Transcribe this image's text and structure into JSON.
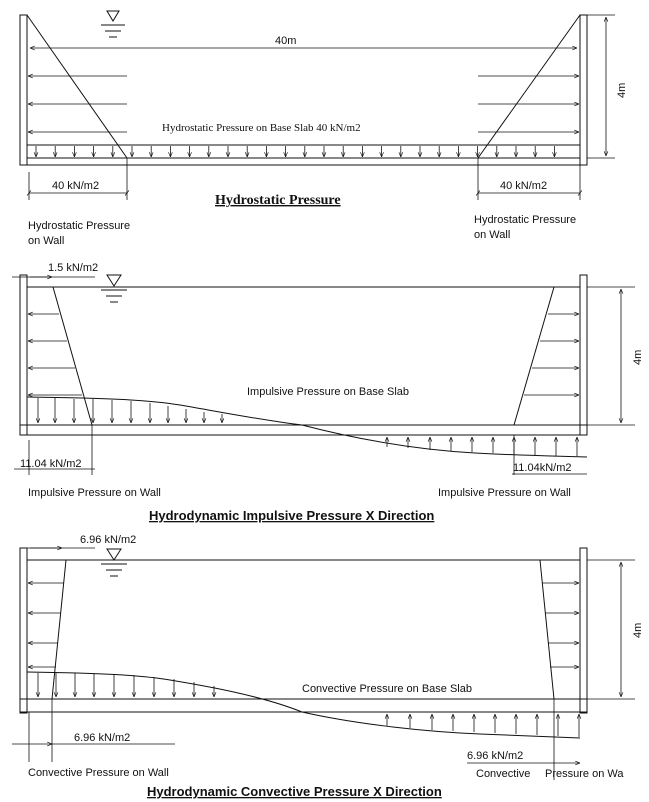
{
  "panel1": {
    "span_label": "40m",
    "height_label": "4m",
    "base_label": "Hydrostatic Pressure on Base Slab 40 kN/m2",
    "left_value": "40 kN/m2",
    "right_value": "40 kN/m2",
    "title": "Hydrostatic Pressure",
    "left_wall_label_1": "Hydrostatic Pressure",
    "left_wall_label_2": "on Wall",
    "right_wall_label_1": "Hydrostatic Pressure",
    "right_wall_label_2": "on Wall"
  },
  "panel2": {
    "top_value": "1.5 kN/m2",
    "height_label": "4m",
    "base_label": "Impulsive Pressure on Base Slab",
    "left_value": "11.04 kN/m2",
    "right_value": "11.04kN/m2",
    "left_wall_label": "Impulsive Pressure on Wall",
    "right_wall_label": "Impulsive  Pressure on Wall",
    "title": "Hydrodynamic Impulsive  Pressure X Direction"
  },
  "panel3": {
    "top_value": "6.96 kN/m2",
    "height_label": "4m",
    "base_label": "Convective Pressure on Base Slab",
    "left_value": "6.96 kN/m2",
    "right_value": "6.96 kN/m2",
    "left_wall_label": "Convective Pressure on Wall",
    "right_wall_label_1": "Convective",
    "right_wall_label_2": "Pressure on Wa",
    "title": "Hydrodynamic Convective Pressure X Direction"
  }
}
